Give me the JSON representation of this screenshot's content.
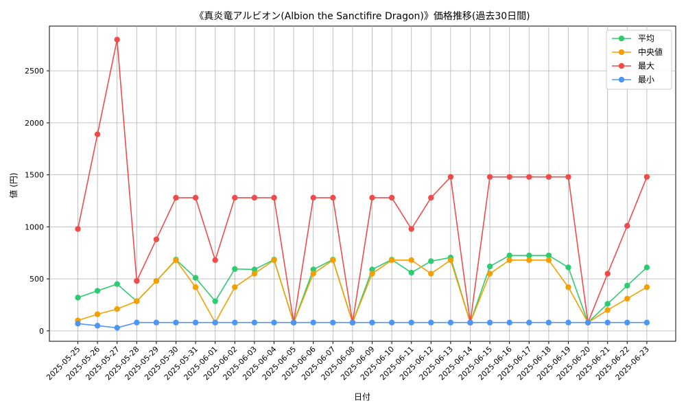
{
  "chart_data": {
    "type": "line",
    "title": "《真炎竜アルビオン(Albion the Sanctifire Dragon)》価格推移(過去30日間)",
    "xlabel": "日付",
    "ylabel": "値 (円)",
    "ylim": [
      -100,
      2930
    ],
    "yticks": [
      0,
      500,
      1000,
      1500,
      2000,
      2500
    ],
    "grid": true,
    "legend_position": "top-right",
    "categories": [
      "2025-05-25",
      "2025-05-26",
      "2025-05-27",
      "2025-05-28",
      "2025-05-29",
      "2025-05-30",
      "2025-05-31",
      "2025-06-01",
      "2025-06-02",
      "2025-06-03",
      "2025-06-04",
      "2025-06-05",
      "2025-06-06",
      "2025-06-07",
      "2025-06-08",
      "2025-06-09",
      "2025-06-10",
      "2025-06-11",
      "2025-06-12",
      "2025-06-13",
      "2025-06-14",
      "2025-06-15",
      "2025-06-16",
      "2025-06-17",
      "2025-06-18",
      "2025-06-19",
      "2025-06-20",
      "2025-06-21",
      "2025-06-22",
      "2025-06-23"
    ],
    "series": [
      {
        "name": "平均",
        "color": "#2ecc71",
        "values": [
          320,
          385,
          450,
          285,
          480,
          685,
          510,
          285,
          595,
          590,
          685,
          80,
          590,
          685,
          80,
          590,
          685,
          560,
          670,
          705,
          80,
          620,
          725,
          725,
          725,
          610,
          80,
          260,
          435,
          610
        ]
      },
      {
        "name": "中央値",
        "color": "#f5a000",
        "values": [
          100,
          160,
          210,
          285,
          480,
          680,
          420,
          80,
          420,
          550,
          680,
          80,
          550,
          680,
          80,
          550,
          680,
          680,
          550,
          680,
          80,
          550,
          680,
          680,
          680,
          420,
          80,
          200,
          310,
          420
        ]
      },
      {
        "name": "最大",
        "color": "#ef4b4b",
        "values": [
          980,
          1890,
          2800,
          480,
          880,
          1280,
          1280,
          680,
          1280,
          1280,
          1280,
          80,
          1280,
          1280,
          80,
          1280,
          1280,
          980,
          1280,
          1480,
          80,
          1480,
          1480,
          1480,
          1480,
          1480,
          80,
          550,
          1010,
          1480
        ]
      },
      {
        "name": "最小",
        "color": "#4d96f5",
        "values": [
          70,
          50,
          30,
          80,
          80,
          80,
          80,
          80,
          80,
          80,
          80,
          80,
          80,
          80,
          80,
          80,
          80,
          80,
          80,
          80,
          80,
          80,
          80,
          80,
          80,
          80,
          80,
          80,
          80,
          80
        ]
      }
    ]
  }
}
